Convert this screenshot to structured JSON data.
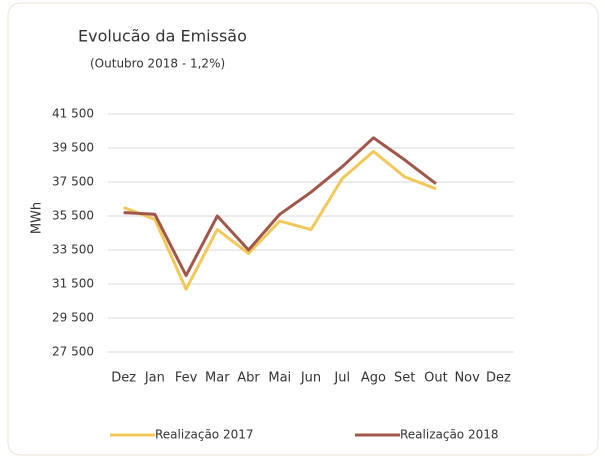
{
  "chart_data": {
    "type": "line",
    "title": "Evolucão da Emissão",
    "subtitle": "(Outubro 2018 - 1,2%)",
    "y_label": "MWh",
    "categories": [
      "Dez",
      "Jan",
      "Fev",
      "Mar",
      "Abr",
      "Mai",
      "Jun",
      "Jul",
      "Ago",
      "Set",
      "Out",
      "Nov",
      "Dez"
    ],
    "series": [
      {
        "name": "Realização 2017",
        "color": "#f2c85b",
        "values": [
          36000,
          35300,
          31200,
          34700,
          33300,
          35200,
          34700,
          37700,
          39300,
          37800,
          37100,
          null,
          null
        ]
      },
      {
        "name": "Realização 2018",
        "color": "#a0574a",
        "values": [
          35700,
          35600,
          32000,
          35500,
          33500,
          35600,
          36900,
          38400,
          40100,
          38800,
          37400,
          null,
          null
        ]
      }
    ],
    "ylim": [
      27500,
      41500
    ],
    "yticks": [
      {
        "value": 27500,
        "label": "27 500"
      },
      {
        "value": 29500,
        "label": "29 500"
      },
      {
        "value": 31500,
        "label": "31 500"
      },
      {
        "value": 33500,
        "label": "33 500"
      },
      {
        "value": 35500,
        "label": "35 500"
      },
      {
        "value": 37500,
        "label": "37 500"
      },
      {
        "value": 39500,
        "label": "39 500"
      },
      {
        "value": 41500,
        "label": "41 500"
      }
    ],
    "grid": true,
    "legend": "bottom"
  }
}
